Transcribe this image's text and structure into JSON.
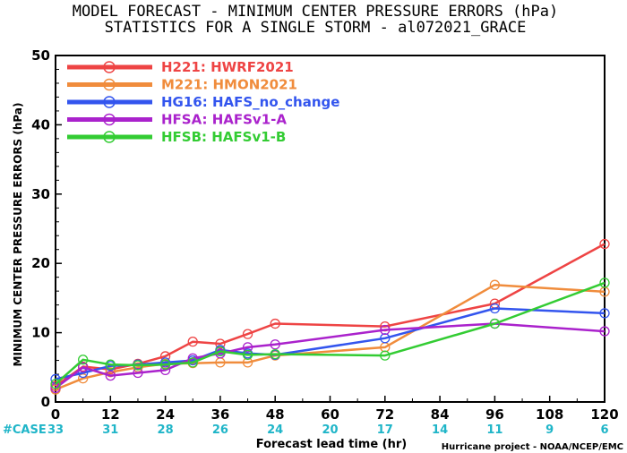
{
  "chart_data": {
    "type": "line",
    "title": "MODEL FORECAST - MINIMUM CENTER PRESSURE ERRORS (hPa)",
    "subtitle": "STATISTICS FOR A SINGLE STORM - al072021_GRACE",
    "ylabel": "MINIMUM CENTER PRESSURE ERRORS (hPa)",
    "xlabel": "Forecast lead time (hr)",
    "xlim": [
      0,
      120
    ],
    "ylim": [
      0,
      50
    ],
    "xticks": [
      0,
      12,
      24,
      36,
      48,
      60,
      72,
      84,
      96,
      108,
      120
    ],
    "yticks": [
      0,
      10,
      20,
      30,
      40,
      50
    ],
    "grid": false,
    "legend_position": "top-left",
    "case_label": "#CASE",
    "cases": [
      {
        "x": 0,
        "n": "33"
      },
      {
        "x": 12,
        "n": "31"
      },
      {
        "x": 24,
        "n": "28"
      },
      {
        "x": 36,
        "n": "26"
      },
      {
        "x": 48,
        "n": "24"
      },
      {
        "x": 60,
        "n": "20"
      },
      {
        "x": 72,
        "n": "17"
      },
      {
        "x": 84,
        "n": "14"
      },
      {
        "x": 96,
        "n": "11"
      },
      {
        "x": 108,
        "n": "9"
      },
      {
        "x": 120,
        "n": "6"
      }
    ],
    "credit": "Hurricane project - NOAA/NCEP/EMC",
    "series": [
      {
        "name": "H221: HWRF2021",
        "color": "#ee4444",
        "x": [
          0,
          6,
          12,
          18,
          24,
          30,
          36,
          42,
          48,
          72,
          96,
          120
        ],
        "y": [
          2.3,
          5.1,
          4.7,
          5.5,
          6.6,
          8.7,
          8.4,
          9.8,
          11.3,
          10.9,
          14.2,
          22.8
        ]
      },
      {
        "name": "M221: HMON2021",
        "color": "#f08c3c",
        "x": [
          0,
          6,
          12,
          18,
          24,
          30,
          36,
          42,
          48,
          72,
          96,
          120
        ],
        "y": [
          1.8,
          3.4,
          4.3,
          5.0,
          5.5,
          5.6,
          5.7,
          5.7,
          6.7,
          7.9,
          16.9,
          15.9
        ]
      },
      {
        "name": "HG16: HAFS_no_change",
        "color": "#3355ee",
        "x": [
          0,
          6,
          12,
          18,
          24,
          30,
          36,
          42,
          48,
          72,
          96,
          120
        ],
        "y": [
          3.3,
          4.2,
          5.2,
          5.4,
          5.7,
          6.0,
          7.5,
          7.0,
          6.8,
          9.2,
          13.5,
          12.8
        ]
      },
      {
        "name": "HFSA: HAFSv1-A",
        "color": "#aa22cc",
        "x": [
          0,
          6,
          12,
          18,
          24,
          30,
          36,
          42,
          48,
          72,
          96,
          120
        ],
        "y": [
          2.0,
          5.0,
          3.8,
          4.2,
          4.6,
          6.3,
          7.0,
          7.9,
          8.3,
          10.4,
          11.3,
          10.2
        ]
      },
      {
        "name": "HFSB: HAFSv1-B",
        "color": "#33cc33",
        "x": [
          0,
          6,
          12,
          18,
          24,
          30,
          36,
          42,
          48,
          72,
          96,
          120
        ],
        "y": [
          2.6,
          6.1,
          5.4,
          5.3,
          5.4,
          5.7,
          7.3,
          6.8,
          6.9,
          6.7,
          11.3,
          17.2
        ]
      }
    ]
  }
}
